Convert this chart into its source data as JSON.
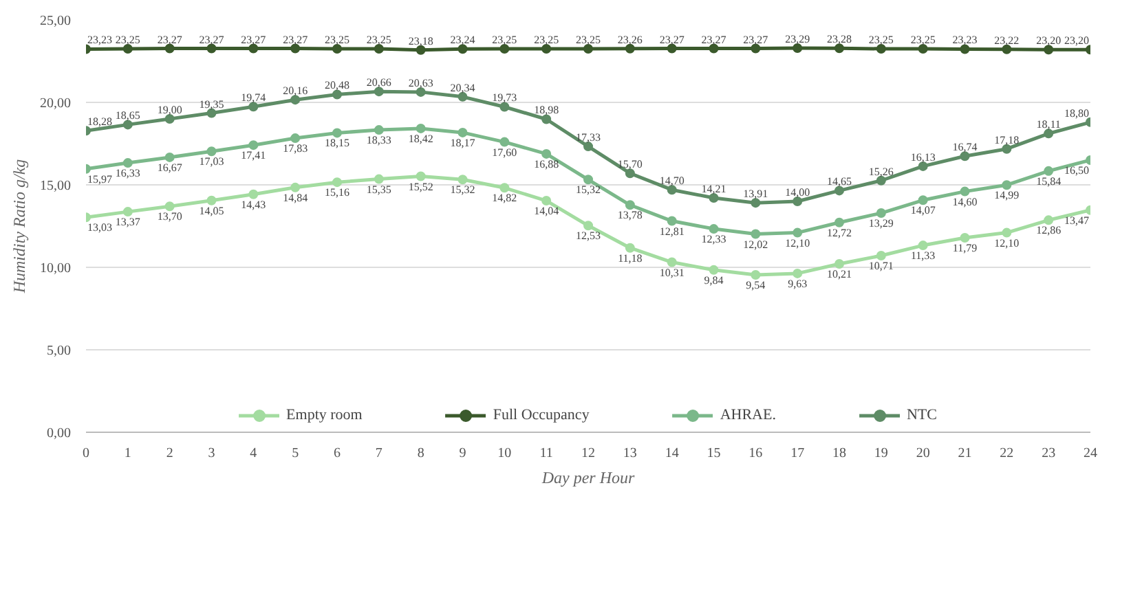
{
  "chart_data": {
    "type": "line",
    "xlabel": "Day per Hour",
    "ylabel": "Humidity Ratio g/kg",
    "x": [
      0,
      1,
      2,
      3,
      4,
      5,
      6,
      7,
      8,
      9,
      10,
      11,
      12,
      13,
      14,
      15,
      16,
      17,
      18,
      19,
      20,
      21,
      22,
      23,
      24
    ],
    "xlim": [
      0,
      24
    ],
    "xticks": [
      0,
      1,
      2,
      3,
      4,
      5,
      6,
      7,
      8,
      9,
      10,
      11,
      12,
      13,
      14,
      15,
      16,
      17,
      18,
      19,
      20,
      21,
      22,
      23,
      24
    ],
    "ylim": [
      0,
      25
    ],
    "yticks": [
      {
        "value": 0,
        "label": "0,00"
      },
      {
        "value": 5,
        "label": "5,00"
      },
      {
        "value": 10,
        "label": "10,00"
      },
      {
        "value": 15,
        "label": "15,00"
      },
      {
        "value": 20,
        "label": "20,00"
      },
      {
        "value": 25,
        "label": "25,00"
      }
    ],
    "grid": "y",
    "legend": "bottom",
    "marker": "circle",
    "line_style": "solid",
    "series": [
      {
        "name": "Empty room",
        "color": "#a3dca0",
        "values": [
          13.03,
          13.37,
          13.7,
          14.05,
          14.43,
          14.84,
          15.16,
          15.35,
          15.52,
          15.32,
          14.82,
          14.04,
          12.53,
          11.18,
          10.31,
          9.84,
          9.54,
          9.63,
          10.21,
          10.71,
          11.33,
          11.79,
          12.1,
          12.86,
          13.47
        ],
        "value_labels": [
          "13,03",
          "13,37",
          "13,70",
          "14,05",
          "14,43",
          "14,84",
          "15,16",
          "15,35",
          "15,52",
          "15,32",
          "14,82",
          "14,04",
          "12,53",
          "11,18",
          "10,31",
          "9,84",
          "9,54",
          "9,63",
          "10,21",
          "10,71",
          "11,33",
          "11,79",
          "12,10",
          "12,86",
          "13,47"
        ]
      },
      {
        "name": "Full Occupancy",
        "color": "#3b5a2c",
        "values": [
          23.23,
          23.25,
          23.27,
          23.27,
          23.27,
          23.27,
          23.25,
          23.25,
          23.18,
          23.24,
          23.25,
          23.25,
          23.25,
          23.26,
          23.27,
          23.27,
          23.27,
          23.29,
          23.28,
          23.25,
          23.25,
          23.23,
          23.22,
          23.2,
          23.2
        ],
        "value_labels": [
          "23,23",
          "23,25",
          "23,27",
          "23,27",
          "23,27",
          "23,27",
          "23,25",
          "23,25",
          "23,18",
          "23,24",
          "23,25",
          "23,25",
          "23,25",
          "23,26",
          "23,27",
          "23,27",
          "23,27",
          "23,29",
          "23,28",
          "23,25",
          "23,25",
          "23,23",
          "23,22",
          "23,20",
          "23,20"
        ]
      },
      {
        "name": "AHRAE.",
        "color": "#7bb88a",
        "values": [
          15.97,
          16.33,
          16.67,
          17.03,
          17.41,
          17.83,
          18.15,
          18.33,
          18.42,
          18.17,
          17.6,
          16.88,
          15.32,
          13.78,
          12.81,
          12.33,
          12.02,
          12.1,
          12.72,
          13.29,
          14.07,
          14.6,
          14.99,
          15.84,
          16.5
        ],
        "value_labels": [
          "15,97",
          "16,33",
          "16,67",
          "17,03",
          "17,41",
          "17,83",
          "18,15",
          "18,33",
          "18,42",
          "18,17",
          "17,60",
          "16,88",
          "15,32",
          "13,78",
          "12,81",
          "12,33",
          "12,02",
          "12,10",
          "12,72",
          "13,29",
          "14,07",
          "14,60",
          "14,99",
          "15,84",
          "16,50"
        ]
      },
      {
        "name": "NTC",
        "color": "#5e8c66",
        "values": [
          18.28,
          18.65,
          19.0,
          19.35,
          19.74,
          20.16,
          20.48,
          20.66,
          20.63,
          20.34,
          19.73,
          18.98,
          17.33,
          15.7,
          14.7,
          14.21,
          13.91,
          14.0,
          14.65,
          15.26,
          16.13,
          16.74,
          17.18,
          18.11,
          18.8
        ],
        "value_labels": [
          "18,28",
          "18,65",
          "19,00",
          "19,35",
          "19,74",
          "20,16",
          "20,48",
          "20,66",
          "20,63",
          "20,34",
          "19,73",
          "18,98",
          "17,33",
          "15,70",
          "14,70",
          "14,21",
          "13,91",
          "14,00",
          "14,65",
          "15,26",
          "16,13",
          "16,74",
          "17,18",
          "18,11",
          "18,80"
        ]
      }
    ]
  }
}
